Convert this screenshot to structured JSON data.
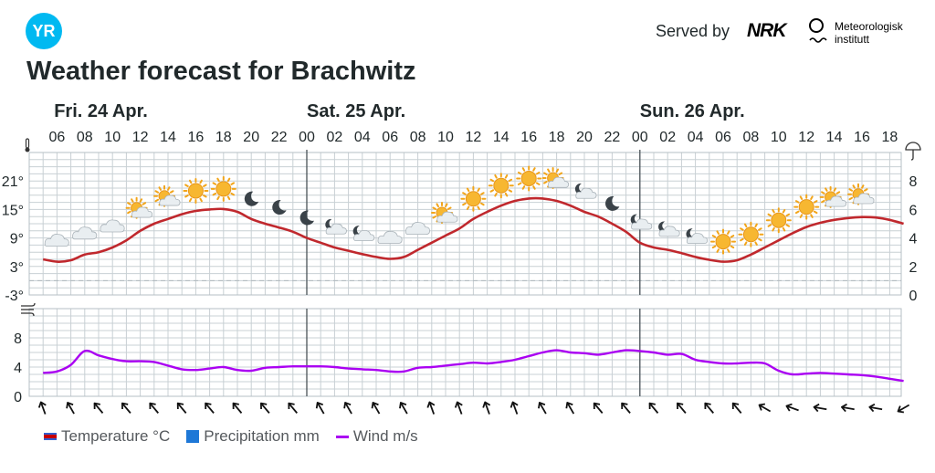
{
  "header": {
    "logo_text": "YR",
    "served_by": "Served by",
    "nrk_logo": "NRK",
    "met_name": [
      "Meteorologisk",
      "institutt"
    ]
  },
  "title": "Weather forecast for Brachwitz",
  "chart_data": {
    "type": "line",
    "days": [
      {
        "label": "Fri. 24 Apr.",
        "at_hour": 5
      },
      {
        "label": "Sat. 25 Apr.",
        "at_hour": 24
      },
      {
        "label": "Sun. 26 Apr.",
        "at_hour": 48
      }
    ],
    "day_separators_at_hour": [
      24,
      48
    ],
    "x_tick_labels": [
      "06",
      "08",
      "10",
      "12",
      "14",
      "16",
      "18",
      "20",
      "22",
      "00",
      "02",
      "04",
      "06",
      "08",
      "10",
      "12",
      "14",
      "16",
      "18",
      "20",
      "22",
      "00",
      "02",
      "04",
      "06",
      "08",
      "10",
      "12",
      "14",
      "16",
      "18"
    ],
    "temperature_axis": {
      "unit": "°C",
      "ticks": [
        21,
        15,
        9,
        3,
        -3
      ],
      "tick_labels": [
        "21°",
        "15°",
        "9°",
        "3°",
        "-3°"
      ],
      "range": [
        -3,
        27
      ]
    },
    "precipitation_axis": {
      "unit": "mm",
      "ticks": [
        8,
        6,
        4,
        2,
        0
      ],
      "range": [
        0,
        10
      ]
    },
    "wind_axis": {
      "unit": "m/s",
      "ticks": [
        8,
        4,
        0
      ],
      "range": [
        0,
        12
      ]
    },
    "series": [
      {
        "name": "Temperature °C",
        "color": "#c0282d",
        "hours": [
          5,
          6,
          7,
          8,
          9,
          10,
          11,
          12,
          13,
          14,
          15,
          16,
          17,
          18,
          19,
          20,
          21,
          22,
          23,
          24,
          25,
          26,
          27,
          28,
          29,
          30,
          31,
          32,
          33,
          34,
          35,
          36,
          37,
          38,
          39,
          40,
          41,
          42,
          43,
          44,
          45,
          46,
          47,
          48,
          49,
          50,
          51,
          52,
          53,
          54,
          55,
          56,
          57,
          58,
          59,
          60,
          61,
          62,
          63,
          64,
          65,
          66,
          67
        ],
        "values": [
          4.5,
          4,
          4.3,
          5.5,
          6,
          7,
          8.5,
          10.5,
          12,
          13,
          14,
          14.7,
          15,
          15.1,
          14.5,
          13,
          12,
          11.2,
          10.3,
          9,
          8,
          7,
          6.3,
          5.6,
          5,
          4.6,
          5,
          6.5,
          8,
          9.5,
          11,
          13,
          14.5,
          15.8,
          16.8,
          17.3,
          17.3,
          16.8,
          15.8,
          14.5,
          13.5,
          12,
          10.3,
          8,
          7,
          6.5,
          5.8,
          5,
          4.4,
          4,
          4.3,
          5.5,
          7,
          8.5,
          10,
          11.3,
          12.2,
          12.8,
          13.2,
          13.4,
          13.3,
          12.8,
          12
        ]
      },
      {
        "name": "Precipitation mm",
        "color": "#1e78d7",
        "hours": [],
        "values": []
      },
      {
        "name": "Wind m/s",
        "color": "#aa00f2",
        "hours": [
          5,
          6,
          7,
          8,
          9,
          10,
          11,
          12,
          13,
          14,
          15,
          16,
          17,
          18,
          19,
          20,
          21,
          22,
          23,
          24,
          25,
          26,
          27,
          28,
          29,
          30,
          31,
          32,
          33,
          34,
          35,
          36,
          37,
          38,
          39,
          40,
          41,
          42,
          43,
          44,
          45,
          46,
          47,
          48,
          49,
          50,
          51,
          52,
          53,
          54,
          55,
          56,
          57,
          58,
          59,
          60,
          61,
          62,
          63,
          64,
          65,
          66,
          67
        ],
        "values": [
          3.2,
          3.4,
          4.3,
          6.2,
          5.6,
          5.1,
          4.8,
          4.8,
          4.7,
          4.2,
          3.7,
          3.6,
          3.8,
          4,
          3.6,
          3.5,
          3.9,
          4,
          4.1,
          4.1,
          4.1,
          4,
          3.8,
          3.7,
          3.6,
          3.4,
          3.4,
          3.9,
          4,
          4.2,
          4.4,
          4.6,
          4.5,
          4.7,
          5,
          5.5,
          6,
          6.3,
          6,
          5.9,
          5.7,
          6,
          6.3,
          6.2,
          6,
          5.7,
          5.8,
          5,
          4.7,
          4.5,
          4.5,
          4.6,
          4.5,
          3.5,
          3,
          3.1,
          3.2,
          3.1,
          3,
          2.9,
          2.7,
          2.4,
          2.1
        ]
      }
    ],
    "weather_symbols": [
      {
        "hour": 6,
        "icon": "cloud"
      },
      {
        "hour": 8,
        "icon": "cloud"
      },
      {
        "hour": 10,
        "icon": "cloud"
      },
      {
        "hour": 12,
        "icon": "partly-cloudy-day"
      },
      {
        "hour": 14,
        "icon": "partly-cloudy-day"
      },
      {
        "hour": 16,
        "icon": "sun"
      },
      {
        "hour": 18,
        "icon": "sun"
      },
      {
        "hour": 20,
        "icon": "moon"
      },
      {
        "hour": 22,
        "icon": "moon"
      },
      {
        "hour": 24,
        "icon": "moon"
      },
      {
        "hour": 26,
        "icon": "partly-cloudy-night"
      },
      {
        "hour": 28,
        "icon": "partly-cloudy-night"
      },
      {
        "hour": 30,
        "icon": "cloud"
      },
      {
        "hour": 32,
        "icon": "cloud"
      },
      {
        "hour": 34,
        "icon": "partly-cloudy-day"
      },
      {
        "hour": 36,
        "icon": "sun"
      },
      {
        "hour": 38,
        "icon": "sun"
      },
      {
        "hour": 40,
        "icon": "sun"
      },
      {
        "hour": 42,
        "icon": "partly-cloudy-day"
      },
      {
        "hour": 44,
        "icon": "partly-cloudy-night"
      },
      {
        "hour": 46,
        "icon": "moon"
      },
      {
        "hour": 48,
        "icon": "partly-cloudy-night"
      },
      {
        "hour": 50,
        "icon": "partly-cloudy-night"
      },
      {
        "hour": 52,
        "icon": "partly-cloudy-night"
      },
      {
        "hour": 54,
        "icon": "sun"
      },
      {
        "hour": 56,
        "icon": "sun"
      },
      {
        "hour": 58,
        "icon": "sun"
      },
      {
        "hour": 60,
        "icon": "sun"
      },
      {
        "hour": 62,
        "icon": "partly-cloudy-day"
      },
      {
        "hour": 64,
        "icon": "partly-cloudy-day"
      }
    ],
    "wind_directions": {
      "hours": [
        5,
        7,
        9,
        11,
        13,
        15,
        17,
        19,
        21,
        23,
        25,
        27,
        29,
        31,
        33,
        35,
        37,
        39,
        41,
        43,
        45,
        47,
        49,
        51,
        53,
        55,
        57,
        59,
        61,
        63,
        65,
        67
      ],
      "arrow_rotation_deg": [
        160,
        150,
        140,
        140,
        140,
        140,
        140,
        140,
        140,
        140,
        150,
        150,
        150,
        150,
        160,
        160,
        160,
        160,
        150,
        150,
        140,
        140,
        140,
        140,
        140,
        140,
        120,
        110,
        100,
        100,
        100,
        60
      ]
    },
    "grid": true,
    "legend": "bottom-left"
  },
  "legend": {
    "temperature": "Temperature °C",
    "precipitation": "Precipitation mm",
    "wind": "Wind m/s"
  },
  "colors": {
    "temperature": "#c0282d",
    "precipitation": "#1e78d7",
    "wind": "#aa00f2",
    "grid": "#c8d0d4",
    "brand": "#00b9f1"
  }
}
